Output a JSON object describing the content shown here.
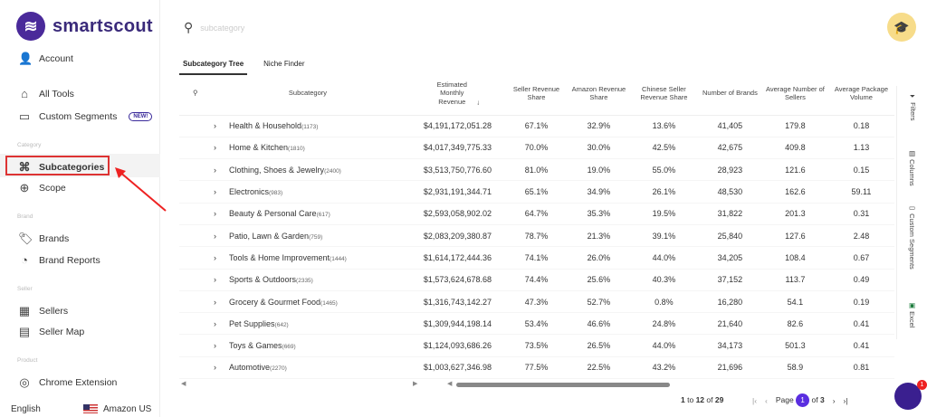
{
  "brand": {
    "name": "smartscout",
    "accent": "#4a2a9a"
  },
  "sidebar": {
    "account": "Account",
    "all_tools": "All Tools",
    "custom_segments": "Custom Segments",
    "new_badge": "NEW!",
    "sections": {
      "category": "Category",
      "brand": "Brand",
      "seller": "Seller",
      "product": "Product"
    },
    "subcategories": "Subcategories",
    "scope": "Scope",
    "brands": "Brands",
    "brand_reports": "Brand Reports",
    "sellers": "Sellers",
    "seller_map": "Seller Map",
    "chrome_extension": "Chrome Extension",
    "language": "English",
    "marketplace": "Amazon US"
  },
  "search": {
    "placeholder": "subcategory"
  },
  "tabs": [
    "Subcategory Tree",
    "Niche Finder"
  ],
  "table": {
    "headers": [
      "Subcategory",
      "Estimated Monthly Revenue",
      "Seller Revenue Share",
      "Amazon Revenue Share",
      "Chinese Seller Revenue Share",
      "Number of Brands",
      "Average Number of Sellers",
      "Average Package Volume"
    ],
    "sort": "descending",
    "rows": [
      {
        "name": "Health & Household",
        "count": "(1173)",
        "rev": "$4,191,172,051.28",
        "seller": "67.1%",
        "amazon": "32.9%",
        "chinese": "13.6%",
        "brands": "41,405",
        "sellers": "179.8",
        "vol": "0.18"
      },
      {
        "name": "Home & Kitchen",
        "count": "(1810)",
        "rev": "$4,017,349,775.33",
        "seller": "70.0%",
        "amazon": "30.0%",
        "chinese": "42.5%",
        "brands": "42,675",
        "sellers": "409.8",
        "vol": "1.13"
      },
      {
        "name": "Clothing, Shoes & Jewelry",
        "count": "(2400)",
        "rev": "$3,513,750,776.60",
        "seller": "81.0%",
        "amazon": "19.0%",
        "chinese": "55.0%",
        "brands": "28,923",
        "sellers": "121.6",
        "vol": "0.15"
      },
      {
        "name": "Electronics",
        "count": "(983)",
        "rev": "$2,931,191,344.71",
        "seller": "65.1%",
        "amazon": "34.9%",
        "chinese": "26.1%",
        "brands": "48,530",
        "sellers": "162.6",
        "vol": "59.11"
      },
      {
        "name": "Beauty & Personal Care",
        "count": "(617)",
        "rev": "$2,593,058,902.02",
        "seller": "64.7%",
        "amazon": "35.3%",
        "chinese": "19.5%",
        "brands": "31,822",
        "sellers": "201.3",
        "vol": "0.31"
      },
      {
        "name": "Patio, Lawn & Garden",
        "count": "(759)",
        "rev": "$2,083,209,380.87",
        "seller": "78.7%",
        "amazon": "21.3%",
        "chinese": "39.1%",
        "brands": "25,840",
        "sellers": "127.6",
        "vol": "2.48"
      },
      {
        "name": "Tools & Home Improvement",
        "count": "(1444)",
        "rev": "$1,614,172,444.36",
        "seller": "74.1%",
        "amazon": "26.0%",
        "chinese": "44.0%",
        "brands": "34,205",
        "sellers": "108.4",
        "vol": "0.67"
      },
      {
        "name": "Sports & Outdoors",
        "count": "(2335)",
        "rev": "$1,573,624,678.68",
        "seller": "74.4%",
        "amazon": "25.6%",
        "chinese": "40.3%",
        "brands": "37,152",
        "sellers": "113.7",
        "vol": "0.49"
      },
      {
        "name": "Grocery & Gourmet Food",
        "count": "(1465)",
        "rev": "$1,316,743,142.27",
        "seller": "47.3%",
        "amazon": "52.7%",
        "chinese": "0.8%",
        "brands": "16,280",
        "sellers": "54.1",
        "vol": "0.19"
      },
      {
        "name": "Pet Supplies",
        "count": "(642)",
        "rev": "$1,309,944,198.14",
        "seller": "53.4%",
        "amazon": "46.6%",
        "chinese": "24.8%",
        "brands": "21,640",
        "sellers": "82.6",
        "vol": "0.41"
      },
      {
        "name": "Toys & Games",
        "count": "(669)",
        "rev": "$1,124,093,686.26",
        "seller": "73.5%",
        "amazon": "26.5%",
        "chinese": "44.0%",
        "brands": "34,173",
        "sellers": "501.3",
        "vol": "0.41"
      },
      {
        "name": "Automotive",
        "count": "(2270)",
        "rev": "$1,003,627,346.98",
        "seller": "77.5%",
        "amazon": "22.5%",
        "chinese": "43.2%",
        "brands": "21,696",
        "sellers": "58.9",
        "vol": "0.81"
      }
    ]
  },
  "side_tools": [
    "Filters",
    "Columns",
    "Custom Segments",
    "Excel"
  ],
  "pagination": {
    "from": "1",
    "to": "12",
    "total": "29",
    "page_label": "Page",
    "page": "1",
    "of": "of",
    "pages": "3",
    "to_label": "to",
    "of_label": "of"
  },
  "chat_badge": "1"
}
